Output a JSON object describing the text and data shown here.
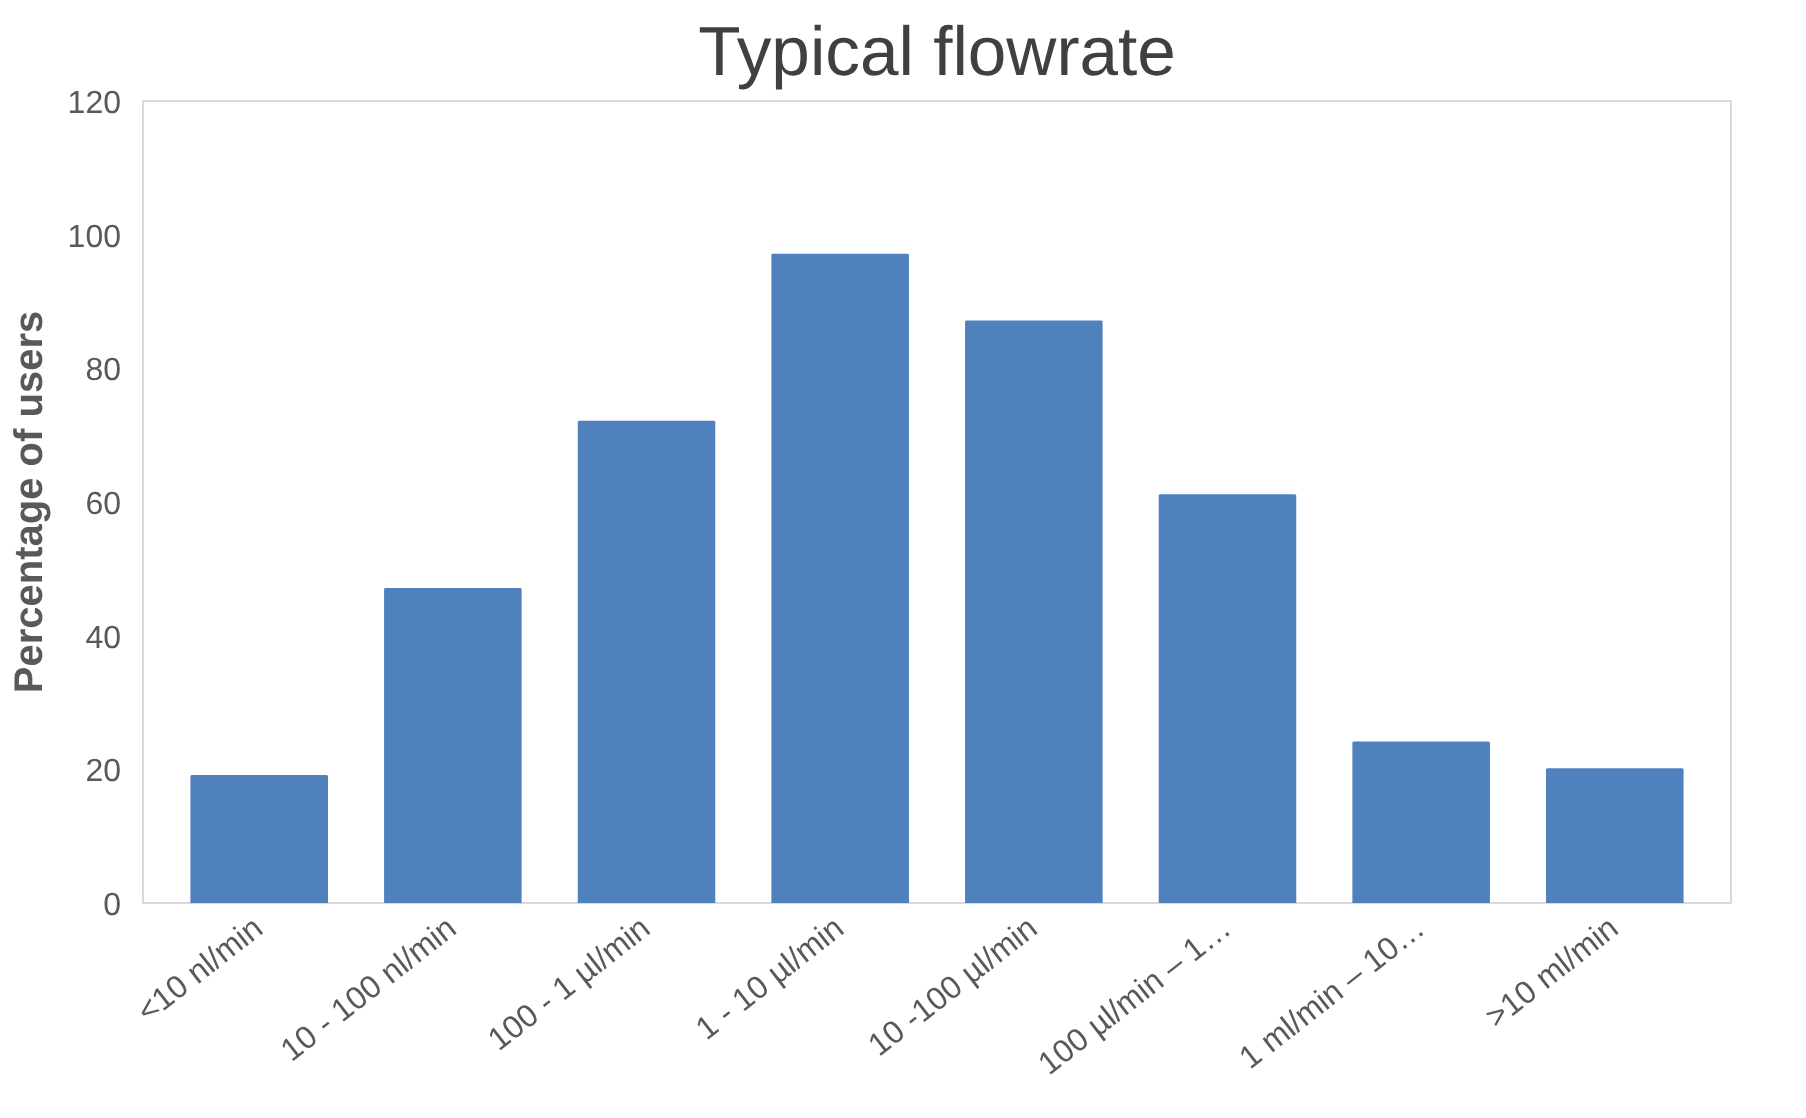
{
  "chart_data": {
    "type": "bar",
    "title": "Typical flowrate",
    "ylabel": "Percentage of users",
    "categories": [
      "<10 nl/min",
      "10 - 100 nl/min",
      "100 - 1 µl/min",
      "1 - 10 µl/min",
      "10 -100 µl/min",
      "100 µl/min – 1…",
      "1 ml/min – 10…",
      ">10 ml/min"
    ],
    "values": [
      19,
      47,
      72,
      97,
      87,
      61,
      24,
      20
    ],
    "color": "#4f81bd",
    "ylim": [
      0,
      120
    ],
    "yticks": [
      0,
      20,
      40,
      60,
      80,
      100,
      120
    ],
    "grid": false
  }
}
